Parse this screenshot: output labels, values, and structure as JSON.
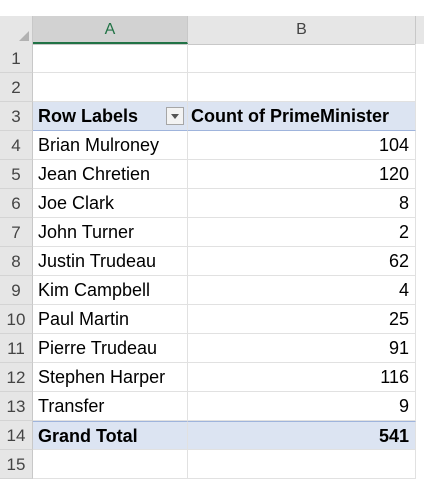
{
  "columns": [
    "A",
    "B"
  ],
  "rows": [
    "1",
    "2",
    "3",
    "4",
    "5",
    "6",
    "7",
    "8",
    "9",
    "10",
    "11",
    "12",
    "13",
    "14",
    "15"
  ],
  "pivot": {
    "header_a": "Row Labels",
    "header_b": "Count of PrimeMinister",
    "items": [
      {
        "label": "Brian Mulroney",
        "count": "104"
      },
      {
        "label": "Jean Chretien",
        "count": "120"
      },
      {
        "label": "Joe Clark",
        "count": "8"
      },
      {
        "label": "John Turner",
        "count": "2"
      },
      {
        "label": "Justin Trudeau",
        "count": "62"
      },
      {
        "label": "Kim Campbell",
        "count": "4"
      },
      {
        "label": "Paul Martin",
        "count": "25"
      },
      {
        "label": "Pierre Trudeau",
        "count": "91"
      },
      {
        "label": "Stephen Harper",
        "count": "116"
      },
      {
        "label": "Transfer",
        "count": "9"
      }
    ],
    "total_label": "Grand Total",
    "total_value": "541"
  },
  "colors": {
    "accent": "#217346",
    "pivot_fill": "#dce4f2"
  }
}
